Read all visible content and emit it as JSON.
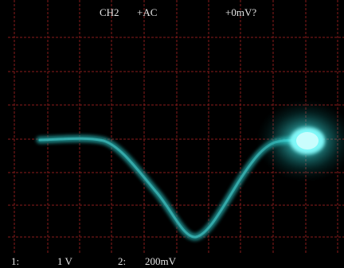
{
  "header": {
    "channel": "CH2",
    "coupling": "+AC",
    "offset": "+0mV?"
  },
  "footer": {
    "ch1_label": "1:",
    "ch1_scale": "1 V",
    "ch2_label": "2:",
    "ch2_scale": "200mV"
  }
}
